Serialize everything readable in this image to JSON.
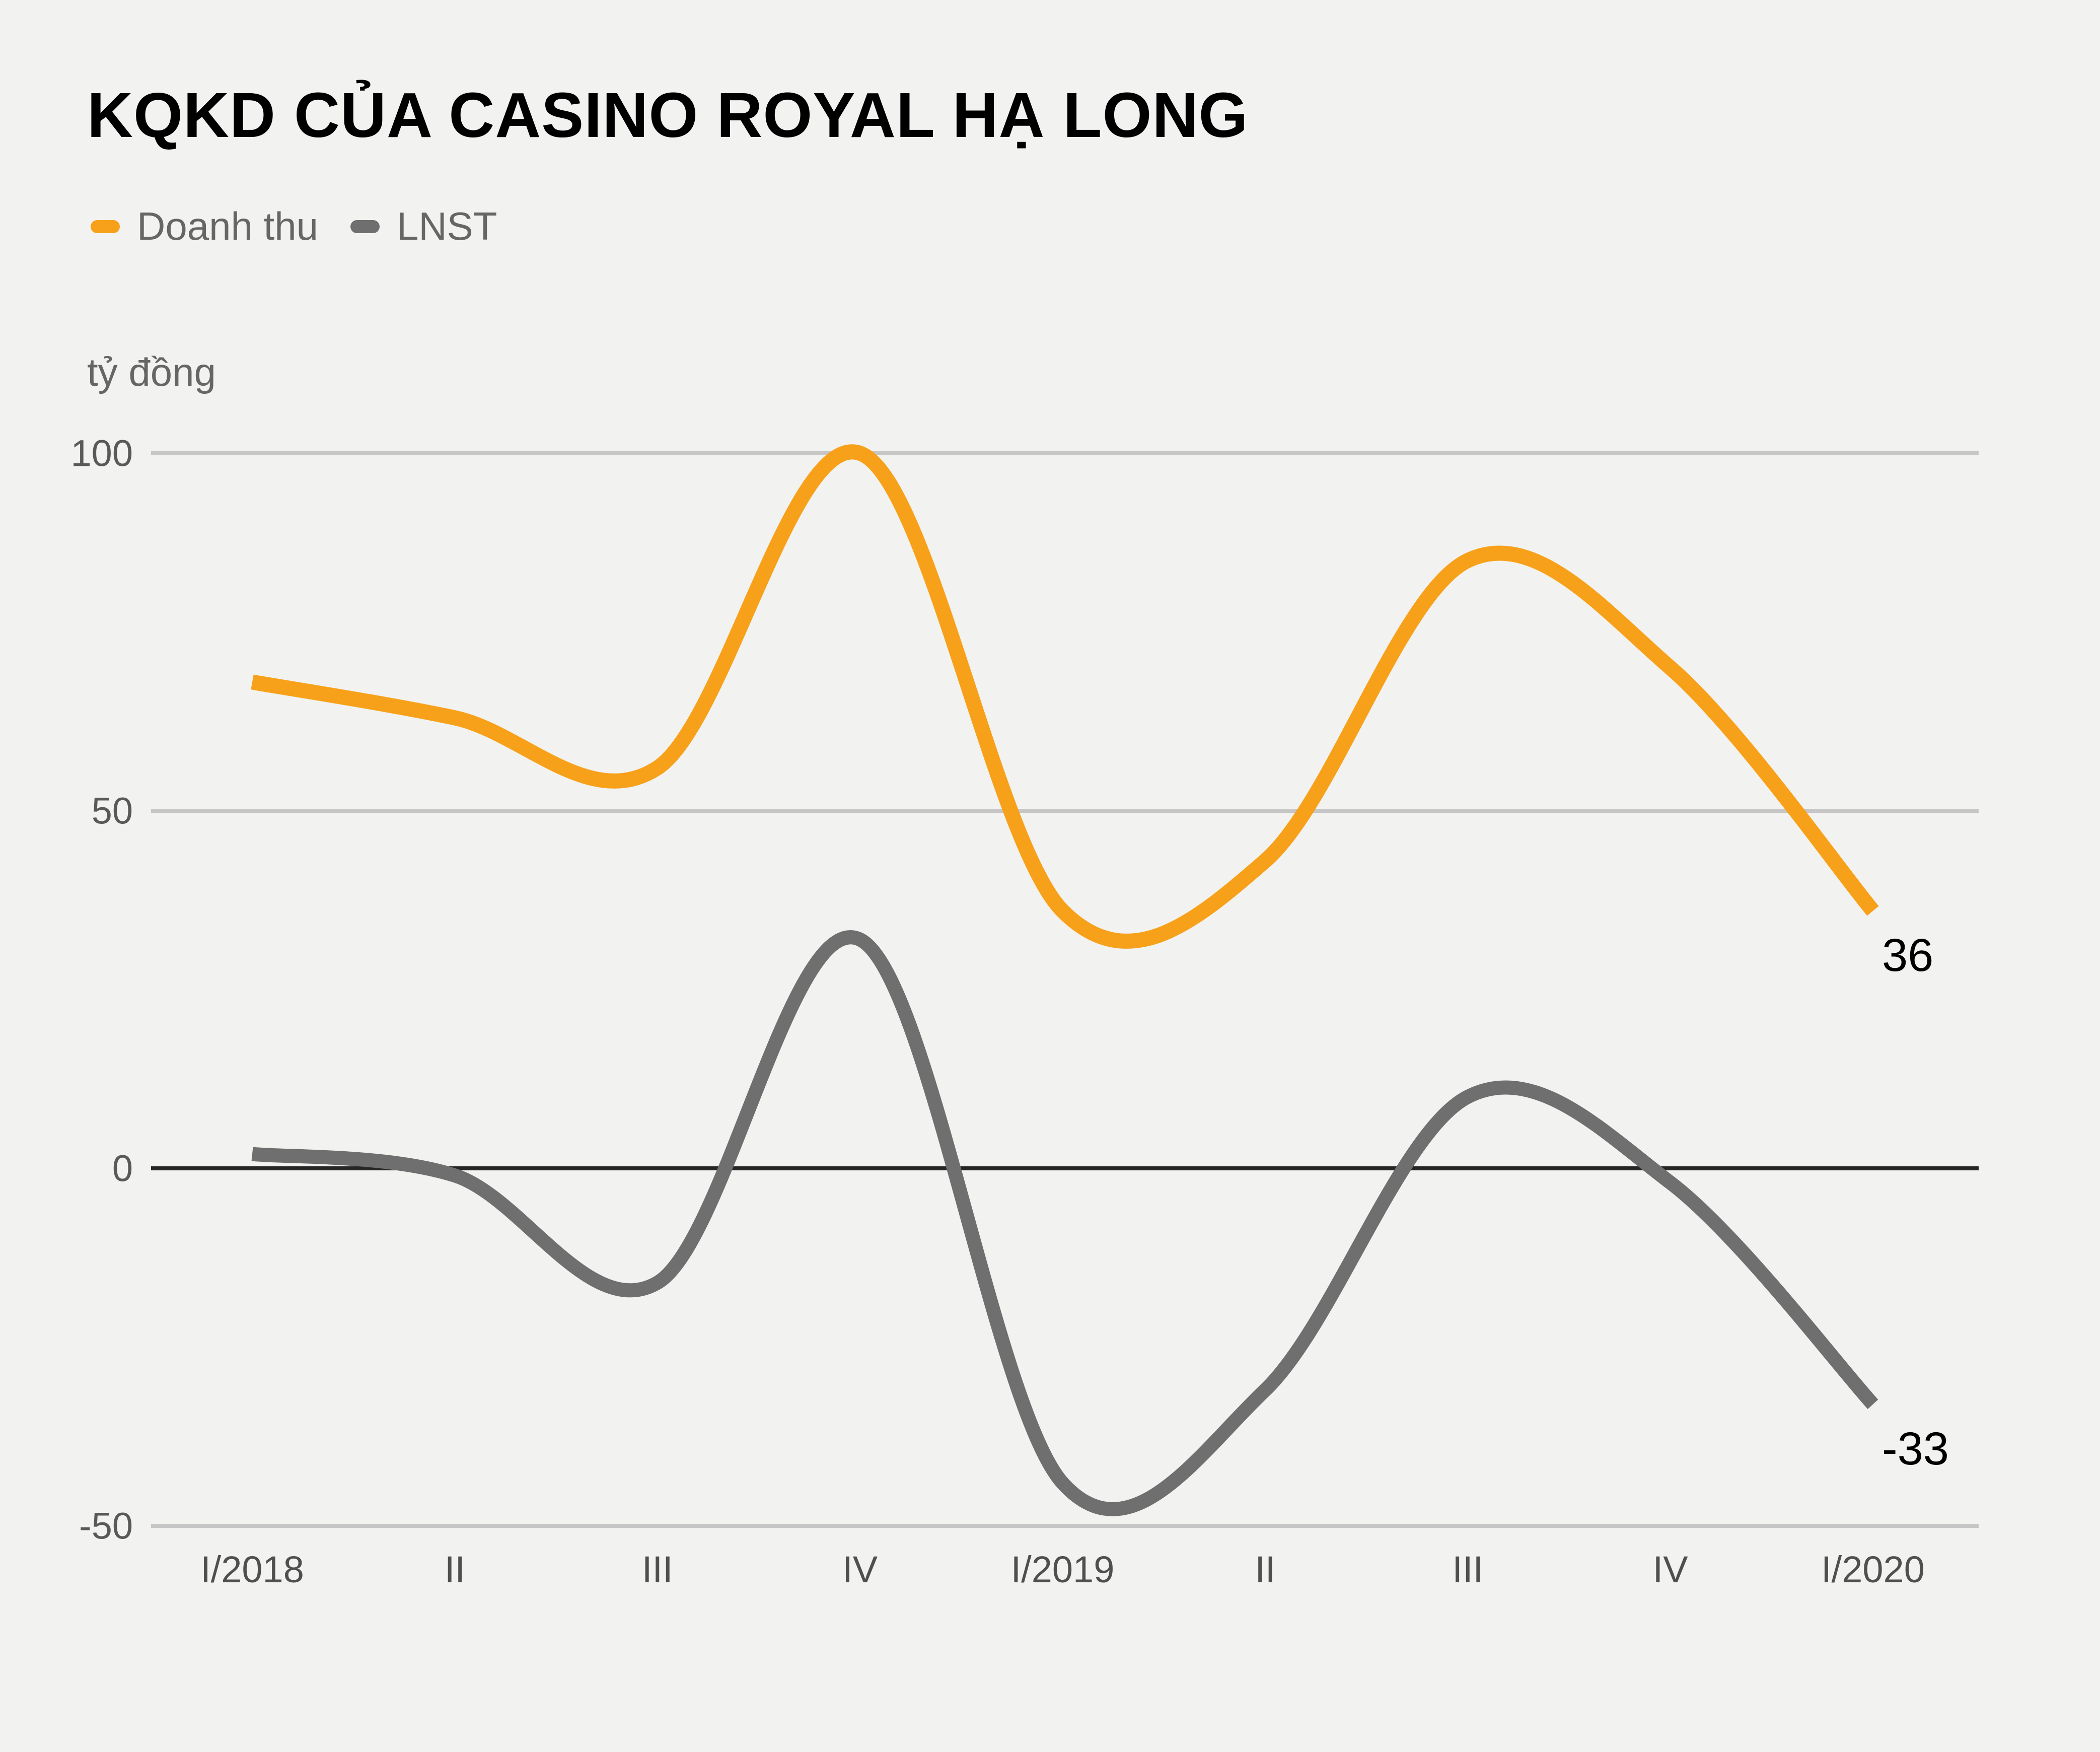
{
  "title": "KQKD CỦA CASINO ROYAL HẠ LONG",
  "unit_label": "tỷ đồng",
  "legend": {
    "items": [
      {
        "label": "Doanh thu",
        "color": "#F7A11A"
      },
      {
        "label": "LNST",
        "color": "#6F6F6F"
      }
    ]
  },
  "chart_data": {
    "type": "line",
    "smooth": true,
    "grid": "horizontal",
    "legend_position": "top-left",
    "title": "KQKD CỦA CASINO ROYAL HẠ LONG",
    "ylabel": "tỷ đồng",
    "xlabel": "",
    "categories": [
      "I/2018",
      "II",
      "III",
      "IV",
      "I/2019",
      "II",
      "III",
      "IV",
      "I/2020"
    ],
    "series": [
      {
        "name": "Doanh thu",
        "color": "#F7A11A",
        "values": [
          68,
          63,
          56,
          100,
          36,
          43,
          85,
          70,
          36
        ]
      },
      {
        "name": "LNST",
        "color": "#6F6F6F",
        "values": [
          2,
          -1,
          -16,
          32,
          -44,
          -31,
          10,
          -2,
          -33
        ]
      }
    ],
    "yticks": [
      100,
      50,
      0,
      -50
    ],
    "ylim": [
      -50,
      100
    ],
    "zero_line": true,
    "end_labels": [
      {
        "series": "Doanh thu",
        "value": 36,
        "text": "36"
      },
      {
        "series": "LNST",
        "value": -33,
        "text": "-33"
      }
    ],
    "colors": {
      "background": "#f2f2f0",
      "grid_line": "#c6c6c6",
      "zero_line": "#262626",
      "tick_text": "#595959",
      "title_text": "#000000",
      "end_label_text": "#000000"
    }
  }
}
